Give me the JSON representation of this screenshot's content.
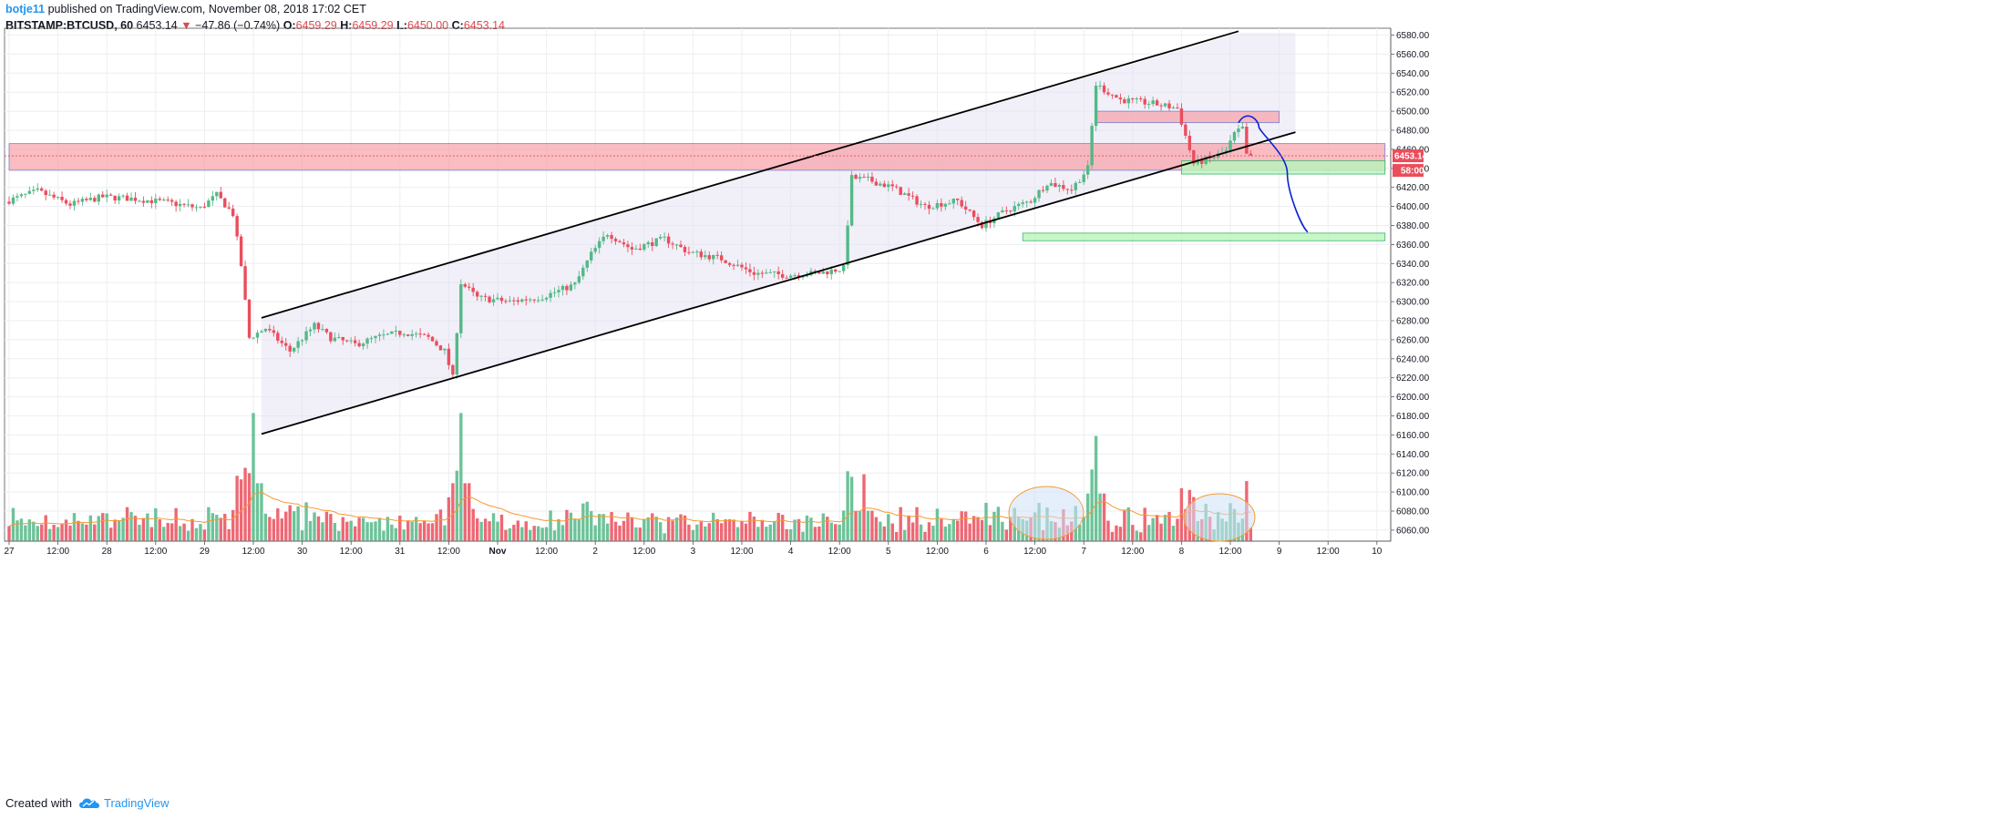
{
  "header": {
    "author": "botje11",
    "published_text": "published on TradingView.com, November 08, 2018 17:02 CET",
    "symbol": "BITSTAMP:BTCUSD, 60",
    "last": "6453.14",
    "change_arrow": "▼",
    "change": "−47.86 (−0.74%)",
    "o_label": "O:",
    "o_value": "6459.29",
    "h_label": "H:",
    "h_value": "6459.29",
    "l_label": "L:",
    "l_value": "6450.00",
    "c_label": "C:",
    "c_value": "6453.14"
  },
  "footer": {
    "created_with": "Created with",
    "brand": "TradingView",
    "brand_icon": "tradingview-cloud-icon"
  },
  "colors": {
    "up": "#53b987",
    "down": "#eb4d5c",
    "volume_ma": "#f59a2f",
    "channel_fill": "#e6e1f2",
    "resistance_zone": "#f7a1a8",
    "support_zone": "#b9f5b9",
    "projection": "#0a22d6",
    "circle_fill": "#cfe0f7",
    "circle_stroke": "#f59a2f",
    "price_tag": "#eb4d5c"
  },
  "chart_data": {
    "type": "candlestick",
    "title": "BITSTAMP:BTCUSD, 60",
    "x_axis_ticks": [
      "27",
      "12:00",
      "28",
      "12:00",
      "29",
      "12:00",
      "30",
      "12:00",
      "31",
      "12:00",
      "Nov",
      "12:00",
      "2",
      "12:00",
      "3",
      "12:00",
      "4",
      "12:00",
      "5",
      "12:00",
      "6",
      "12:00",
      "7",
      "12:00",
      "8",
      "12:00",
      "9",
      "12:00",
      "10"
    ],
    "x_range": [
      "2018-10-27 00:00",
      "2018-11-10 03:00"
    ],
    "y_axis_ticks": [
      "6580.00",
      "6560.00",
      "6540.00",
      "6520.00",
      "6500.00",
      "6480.00",
      "6460.00",
      "6440.00",
      "6420.00",
      "6400.00",
      "6380.00",
      "6360.00",
      "6340.00",
      "6320.00",
      "6300.00",
      "6280.00",
      "6260.00",
      "6240.00",
      "6220.00",
      "6200.00",
      "6180.00",
      "6160.00",
      "6140.00",
      "6120.00",
      "6100.00",
      "6080.00",
      "6060.00"
    ],
    "ylim": [
      6048,
      6586
    ],
    "last_price_label": "6453.14",
    "countdown_label": "58:00",
    "price_path": [
      [
        "2018-10-27 00:00",
        6405
      ],
      [
        "2018-10-27 08:00",
        6416
      ],
      [
        "2018-10-27 16:00",
        6402
      ],
      [
        "2018-10-28 00:00",
        6410
      ],
      [
        "2018-10-28 08:00",
        6408
      ],
      [
        "2018-10-28 16:00",
        6404
      ],
      [
        "2018-10-29 00:00",
        6398
      ],
      [
        "2018-10-29 04:00",
        6412
      ],
      [
        "2018-10-29 08:00",
        6392
      ],
      [
        "2018-10-29 10:00",
        6338
      ],
      [
        "2018-10-29 12:00",
        6262
      ],
      [
        "2018-10-29 16:00",
        6272
      ],
      [
        "2018-10-29 22:00",
        6248
      ],
      [
        "2018-10-30 04:00",
        6275
      ],
      [
        "2018-10-30 08:00",
        6262
      ],
      [
        "2018-10-30 14:00",
        6255
      ],
      [
        "2018-10-30 20:00",
        6263
      ],
      [
        "2018-10-31 02:00",
        6268
      ],
      [
        "2018-10-31 08:00",
        6262
      ],
      [
        "2018-10-31 12:00",
        6248
      ],
      [
        "2018-10-31 14:00",
        6220
      ],
      [
        "2018-10-31 16:00",
        6320
      ],
      [
        "2018-10-31 20:00",
        6304
      ],
      [
        "2018-11-01 04:00",
        6300
      ],
      [
        "2018-11-01 12:00",
        6305
      ],
      [
        "2018-11-01 20:00",
        6318
      ],
      [
        "2018-11-02 00:00",
        6350
      ],
      [
        "2018-11-02 04:00",
        6372
      ],
      [
        "2018-11-02 10:00",
        6355
      ],
      [
        "2018-11-02 18:00",
        6366
      ],
      [
        "2018-11-03 00:00",
        6352
      ],
      [
        "2018-11-03 08:00",
        6345
      ],
      [
        "2018-11-03 16:00",
        6330
      ],
      [
        "2018-11-04 00:00",
        6328
      ],
      [
        "2018-11-04 08:00",
        6330
      ],
      [
        "2018-11-04 14:00",
        6335
      ],
      [
        "2018-11-04 16:00",
        6430
      ],
      [
        "2018-11-04 20:00",
        6428
      ],
      [
        "2018-11-05 02:00",
        6420
      ],
      [
        "2018-11-05 10:00",
        6400
      ],
      [
        "2018-11-05 18:00",
        6406
      ],
      [
        "2018-11-06 00:00",
        6380
      ],
      [
        "2018-11-06 06:00",
        6396
      ],
      [
        "2018-11-06 12:00",
        6406
      ],
      [
        "2018-11-06 16:00",
        6425
      ],
      [
        "2018-11-06 22:00",
        6418
      ],
      [
        "2018-11-07 02:00",
        6440
      ],
      [
        "2018-11-07 04:00",
        6528
      ],
      [
        "2018-11-07 10:00",
        6512
      ],
      [
        "2018-11-07 18:00",
        6508
      ],
      [
        "2018-11-08 00:00",
        6503
      ],
      [
        "2018-11-08 04:00",
        6445
      ],
      [
        "2018-11-08 08:00",
        6450
      ],
      [
        "2018-11-08 12:00",
        6458
      ],
      [
        "2018-11-08 14:00",
        6476
      ],
      [
        "2018-11-08 16:00",
        6482
      ],
      [
        "2018-11-08 17:00",
        6453
      ]
    ],
    "volume_spikes": [
      {
        "time": "2018-10-29 12:00",
        "relative": 1.0
      },
      {
        "time": "2018-10-31 15:00",
        "relative": 1.0
      },
      {
        "time": "2018-11-07 03:00",
        "relative": 0.82
      },
      {
        "time": "2018-11-04 18:00",
        "relative": 0.52
      }
    ],
    "annotations": {
      "channel_upper": [
        [
          "2018-10-29 14:00",
          6283
        ],
        [
          "2018-11-08 14:00",
          6584
        ]
      ],
      "channel_lower": [
        [
          "2018-10-29 14:00",
          6161
        ],
        [
          "2018-11-09 04:00",
          6478
        ]
      ],
      "resistance_zones": [
        {
          "from": "2018-10-27 00:00",
          "to": "2018-11-10 02:00",
          "low": 6438,
          "high": 6466
        },
        {
          "from": "2018-11-07 03:00",
          "to": "2018-11-09 00:00",
          "low": 6488,
          "high": 6500
        }
      ],
      "support_zones": [
        {
          "from": "2018-11-08 00:00",
          "to": "2018-11-10 02:00",
          "low": 6434,
          "high": 6448
        },
        {
          "from": "2018-11-06 09:00",
          "to": "2018-11-10 02:00",
          "low": 6364,
          "high": 6372
        }
      ],
      "projection_path": [
        [
          "2018-11-08 14:00",
          6488
        ],
        [
          "2018-11-08 19:00",
          6484
        ],
        [
          "2018-11-09 02:00",
          6435
        ],
        [
          "2018-11-09 07:00",
          6373
        ]
      ]
    }
  }
}
